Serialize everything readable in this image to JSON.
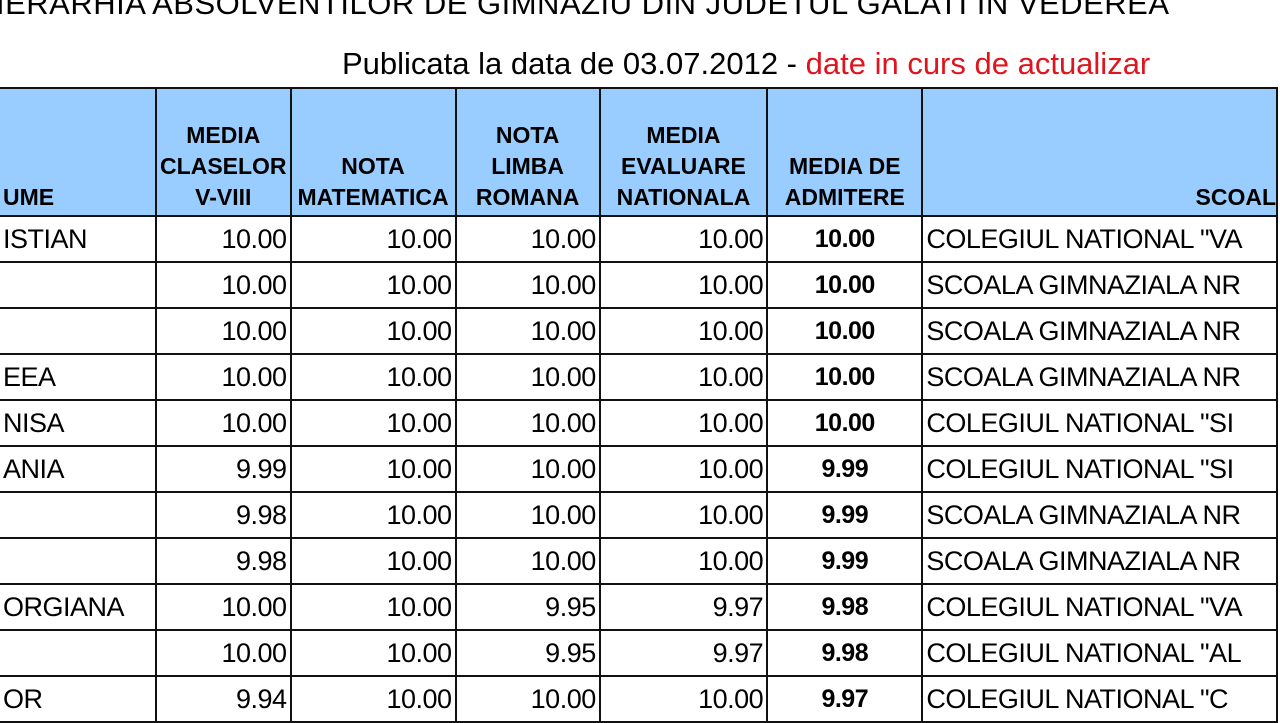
{
  "title": "IERARHIA  ABSOLVENTILOR DE GIMNAZIU DIN JUDETUL GALATI  IN VEDEREA",
  "subtitle": {
    "text": "Publicata la data de 03.07.2012 - ",
    "status": "date in curs de actualizar",
    "status_color": "#e0141e"
  },
  "header_color": "#99ccff",
  "columns": [
    "UME",
    "MEDIA CLASELOR V-VIII",
    "NOTA MATEMATICA",
    "NOTA LIMBA ROMANA",
    "MEDIA EVALUARE NATIONALA",
    "MEDIA DE ADMITERE",
    "SCOAL"
  ],
  "rows": [
    [
      "ISTIAN",
      "10.00",
      "10.00",
      "10.00",
      "10.00",
      "10.00",
      "COLEGIUL NATIONAL \"VA"
    ],
    [
      "",
      "10.00",
      "10.00",
      "10.00",
      "10.00",
      "10.00",
      "SCOALA GIMNAZIALA NR"
    ],
    [
      "",
      "10.00",
      "10.00",
      "10.00",
      "10.00",
      "10.00",
      "SCOALA GIMNAZIALA NR"
    ],
    [
      "EEA",
      "10.00",
      "10.00",
      "10.00",
      "10.00",
      "10.00",
      "SCOALA GIMNAZIALA NR"
    ],
    [
      "NISA",
      "10.00",
      "10.00",
      "10.00",
      "10.00",
      "10.00",
      "COLEGIUL NATIONAL \"SI"
    ],
    [
      "ANIA",
      "9.99",
      "10.00",
      "10.00",
      "10.00",
      "9.99",
      "COLEGIUL NATIONAL \"SI"
    ],
    [
      "",
      "9.98",
      "10.00",
      "10.00",
      "10.00",
      "9.99",
      "SCOALA GIMNAZIALA NR"
    ],
    [
      "",
      "9.98",
      "10.00",
      "10.00",
      "10.00",
      "9.99",
      "SCOALA GIMNAZIALA NR"
    ],
    [
      "ORGIANA",
      "10.00",
      "10.00",
      "9.95",
      "9.97",
      "9.98",
      "COLEGIUL NATIONAL \"VA"
    ],
    [
      "",
      "10.00",
      "10.00",
      "9.95",
      "9.97",
      "9.98",
      "COLEGIUL NATIONAL \"AL"
    ],
    [
      "OR",
      "9.94",
      "10.00",
      "10.00",
      "10.00",
      "9.97",
      "COLEGIUL NATIONAL \"C"
    ]
  ]
}
